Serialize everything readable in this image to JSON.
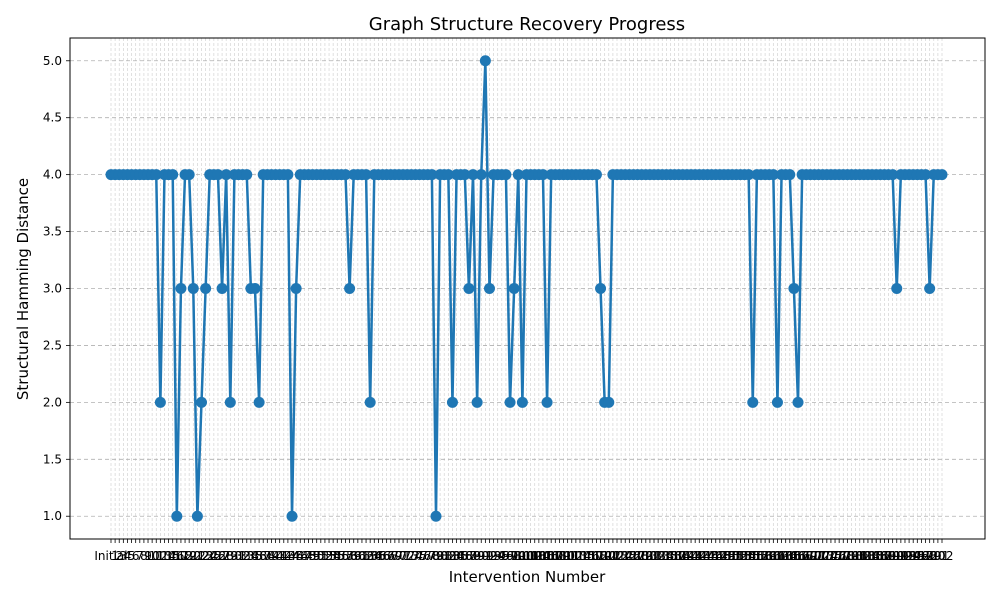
{
  "chart_data": {
    "type": "line",
    "title": "Graph Structure Recovery Progress",
    "xlabel": "Intervention Number",
    "ylabel": "Structural Hamming Distance",
    "first_x_label": "Initial",
    "last_x_label": "200",
    "ylim": [
      0.8,
      5.2
    ],
    "yticks": [
      "1.0",
      "1.5",
      "2.0",
      "2.5",
      "3.0",
      "3.5",
      "4.0",
      "4.5",
      "5.0"
    ],
    "grid": true,
    "series_color": "#1f77b4",
    "values": [
      4,
      4,
      4,
      4,
      4,
      4,
      4,
      4,
      4,
      4,
      4,
      4,
      2,
      4,
      4,
      4,
      1,
      3,
      4,
      4,
      3,
      1,
      2,
      3,
      4,
      4,
      4,
      3,
      4,
      2,
      4,
      4,
      4,
      4,
      3,
      3,
      2,
      4,
      4,
      4,
      4,
      4,
      4,
      4,
      1,
      3,
      4,
      4,
      4,
      4,
      4,
      4,
      4,
      4,
      4,
      4,
      4,
      4,
      3,
      4,
      4,
      4,
      4,
      2,
      4,
      4,
      4,
      4,
      4,
      4,
      4,
      4,
      4,
      4,
      4,
      4,
      4,
      4,
      4,
      1,
      4,
      4,
      4,
      2,
      4,
      4,
      4,
      3,
      4,
      2,
      4,
      5,
      3,
      4,
      4,
      4,
      4,
      2,
      3,
      4,
      2,
      4,
      4,
      4,
      4,
      4,
      2,
      4,
      4,
      4,
      4,
      4,
      4,
      4,
      4,
      4,
      4,
      4,
      4,
      3,
      2,
      2,
      4,
      4,
      4,
      4,
      4,
      4,
      4,
      4,
      4,
      4,
      4,
      4,
      4,
      4,
      4,
      4,
      4,
      4,
      4,
      4,
      4,
      4,
      4,
      4,
      4,
      4,
      4,
      4,
      4,
      4,
      4,
      4,
      4,
      4,
      2,
      4,
      4,
      4,
      4,
      4,
      2,
      4,
      4,
      4,
      3,
      2,
      4,
      4,
      4,
      4,
      4,
      4,
      4,
      4,
      4,
      4,
      4,
      4,
      4,
      4,
      4,
      4,
      4,
      4,
      4,
      4,
      4,
      4,
      4,
      3,
      4,
      4,
      4,
      4,
      4,
      4,
      4,
      3,
      4,
      4,
      4
    ]
  }
}
